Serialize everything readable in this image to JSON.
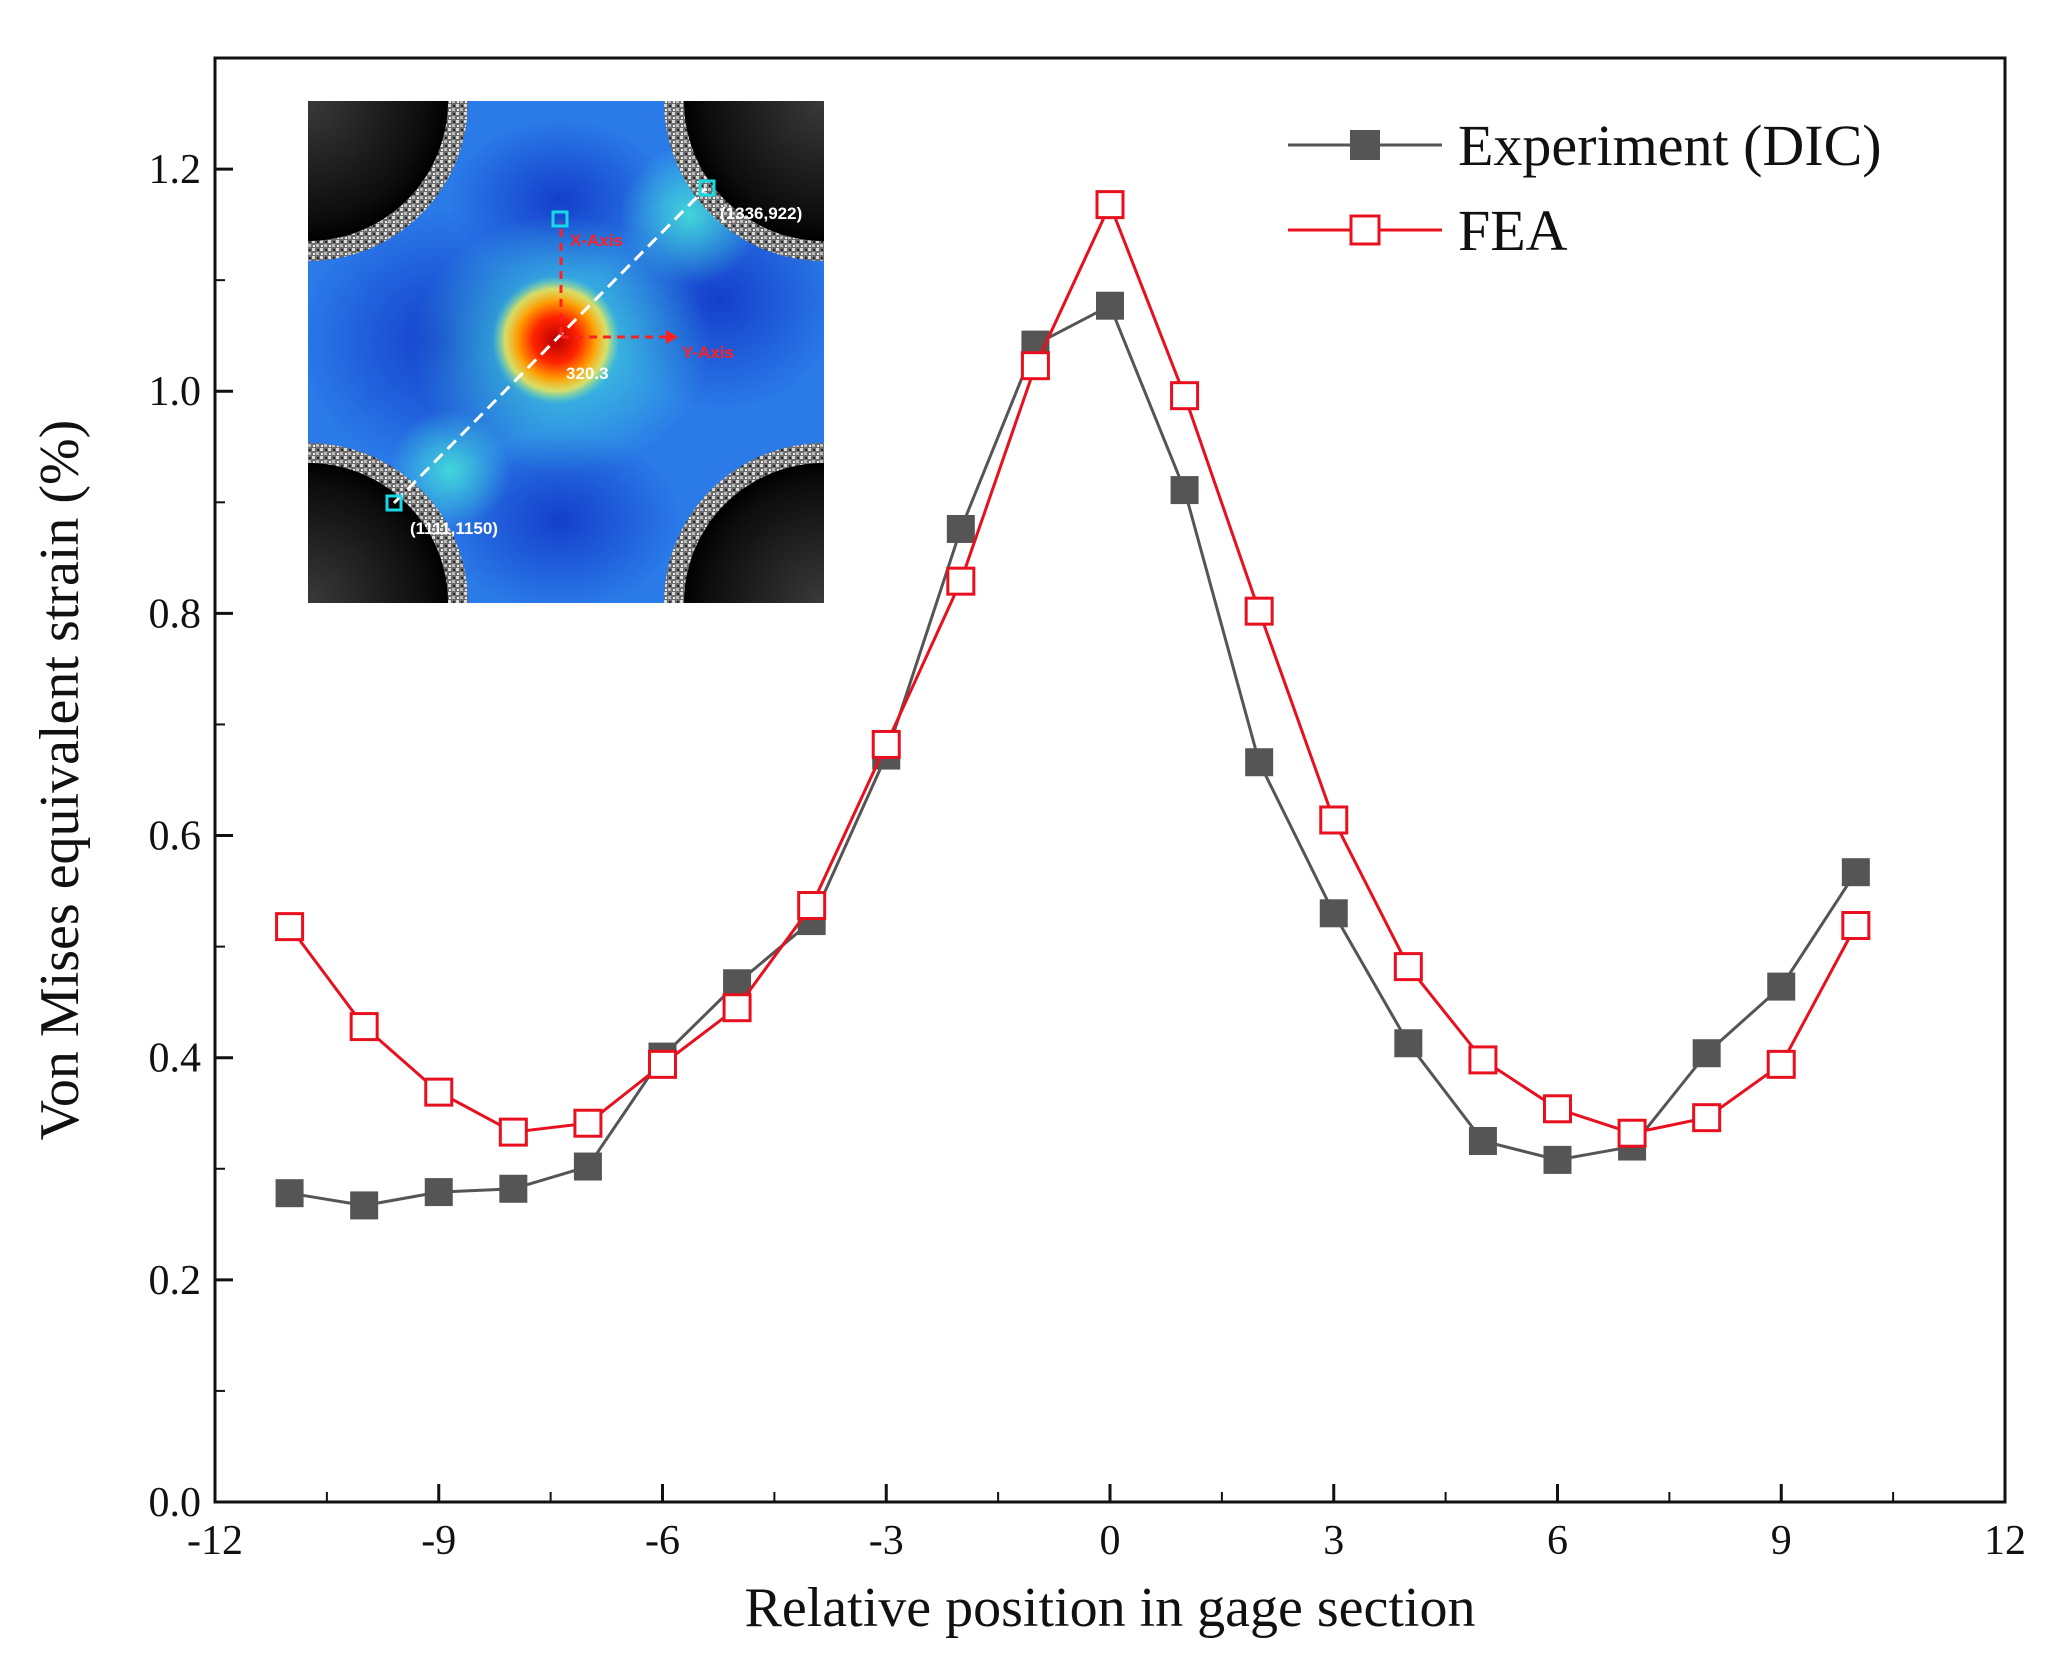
{
  "chart_data": {
    "type": "line",
    "title": "",
    "xlabel": "Relative position in gage section",
    "ylabel": "Von Mises equivalent strain (%)",
    "xlim": [
      -12,
      12
    ],
    "ylim": [
      0.0,
      1.3
    ],
    "xticks": [
      -12,
      -9,
      -6,
      -3,
      0,
      3,
      6,
      9,
      12
    ],
    "xtick_labels": [
      "-12",
      "-9",
      "-6",
      "-3",
      "0",
      "3",
      "6",
      "9",
      "12"
    ],
    "yticks": [
      0.0,
      0.2,
      0.4,
      0.6,
      0.8,
      1.0,
      1.2
    ],
    "ytick_labels": [
      "0.0",
      "0.2",
      "0.4",
      "0.6",
      "0.8",
      "1.0",
      "1.2"
    ],
    "x": [
      -11,
      -10,
      -9,
      -8,
      -7,
      -6,
      -5,
      -4,
      -3,
      -2,
      -1,
      0,
      1,
      2,
      3,
      4,
      5,
      6,
      7,
      8,
      9,
      10
    ],
    "legend_position": "top-right",
    "grid": false,
    "series": [
      {
        "name": "Experiment (DIC)",
        "color": "#555555",
        "marker": "filled-square",
        "values": [
          0.278,
          0.267,
          0.279,
          0.282,
          0.302,
          0.401,
          0.467,
          0.523,
          0.672,
          0.876,
          1.042,
          1.077,
          0.911,
          0.666,
          0.53,
          0.413,
          0.325,
          0.308,
          0.32,
          0.404,
          0.464,
          0.567
        ]
      },
      {
        "name": "FEA",
        "color": "#e8101e",
        "marker": "open-square",
        "values": [
          0.518,
          0.428,
          0.369,
          0.333,
          0.341,
          0.394,
          0.445,
          0.537,
          0.682,
          0.829,
          1.023,
          1.168,
          0.996,
          0.802,
          0.614,
          0.482,
          0.398,
          0.354,
          0.332,
          0.346,
          0.394,
          0.519
        ]
      }
    ],
    "inset": {
      "description_marker": "DIC strain map",
      "x_axis_label": "X-Axis",
      "y_axis_label": "Y-Axis",
      "peak_value": "320.3",
      "point_a": "(1336,922)",
      "point_b": "(1111,1150)"
    }
  },
  "colors": {
    "axis": "#111111",
    "inset_marker": "#18d8e8",
    "inset_text_red": "#ff2020",
    "inset_text_white": "#ffffff"
  }
}
